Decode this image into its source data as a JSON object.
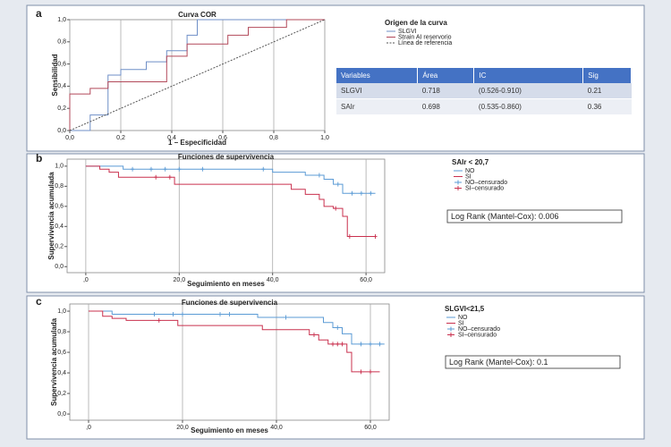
{
  "chart_data": [
    {
      "type": "line",
      "panel": "a",
      "title": "Curva COR",
      "x_label": "1 – Especificidad",
      "y_label": "Sensibilidad",
      "legend_title": "Origen de la curva",
      "xlim": [
        0,
        1
      ],
      "ylim": [
        0,
        1
      ],
      "xticks": [
        {
          "value": 0,
          "label": "0,0"
        },
        {
          "value": 0.2,
          "label": "0,2"
        },
        {
          "value": 0.4,
          "label": "0,4"
        },
        {
          "value": 0.6,
          "label": "0,6"
        },
        {
          "value": 0.8,
          "label": "0,8"
        },
        {
          "value": 1,
          "label": "1,0"
        }
      ],
      "yticks": [
        {
          "value": 0,
          "label": "0,0"
        },
        {
          "value": 0.2,
          "label": "0,2"
        },
        {
          "value": 0.4,
          "label": "0,4"
        },
        {
          "value": 0.6,
          "label": "0,6"
        },
        {
          "value": 0.8,
          "label": "0,8"
        },
        {
          "value": 1,
          "label": "1,0"
        }
      ],
      "grid": "x",
      "series": [
        {
          "name": "SLGVI",
          "color": "#6f8fc7",
          "x": [
            0,
            0.08,
            0.08,
            0.15,
            0.15,
            0.2,
            0.2,
            0.3,
            0.3,
            0.38,
            0.38,
            0.46,
            0.46,
            0.5,
            0.5,
            1
          ],
          "values": [
            0,
            0,
            0.14,
            0.14,
            0.5,
            0.5,
            0.55,
            0.55,
            0.62,
            0.62,
            0.72,
            0.72,
            0.86,
            0.86,
            1,
            1
          ]
        },
        {
          "name": "Strain AI reservorio",
          "color": "#b2495a",
          "x": [
            0,
            0,
            0.08,
            0.08,
            0.15,
            0.15,
            0.38,
            0.38,
            0.46,
            0.46,
            0.62,
            0.62,
            0.7,
            0.7,
            0.85,
            0.85,
            1
          ],
          "values": [
            0,
            0.33,
            0.33,
            0.38,
            0.38,
            0.44,
            0.44,
            0.67,
            0.67,
            0.78,
            0.78,
            0.86,
            0.86,
            0.93,
            0.93,
            1,
            1
          ]
        },
        {
          "name": "Línea de referencia",
          "color": "#555555",
          "dash": true,
          "x": [
            0,
            1
          ],
          "values": [
            0,
            1
          ]
        }
      ]
    },
    {
      "type": "step",
      "panel": "b",
      "title": "Funciones de supervivencia",
      "x_label": "Seguimiento en meses",
      "y_label": "Supervivencia acumulada",
      "legend_title": "SAIr < 20,7",
      "annotation": "Log Rank (Mantel-Cox): 0.006",
      "xlim": [
        -4,
        64
      ],
      "ylim": [
        -0.06,
        1.07
      ],
      "xticks": [
        {
          "value": 0,
          "label": ",0"
        },
        {
          "value": 20,
          "label": "20,0"
        },
        {
          "value": 40,
          "label": "40,0"
        },
        {
          "value": 60,
          "label": "60,0"
        }
      ],
      "yticks": [
        {
          "value": 0,
          "label": "0,0"
        },
        {
          "value": 0.2,
          "label": "0,2"
        },
        {
          "value": 0.4,
          "label": "0,4"
        },
        {
          "value": 0.6,
          "label": "0,6"
        },
        {
          "value": 0.8,
          "label": "0,8"
        },
        {
          "value": 1,
          "label": "1,0"
        }
      ],
      "grid": "x",
      "series": [
        {
          "name": "NO",
          "color": "#5b9bd5",
          "x": [
            0,
            8,
            40,
            47,
            51,
            53,
            55,
            62
          ],
          "values": [
            1,
            0.97,
            0.94,
            0.91,
            0.87,
            0.82,
            0.73,
            0.73
          ]
        },
        {
          "name": "SI",
          "color": "#c9304e",
          "x": [
            0,
            3,
            5,
            7,
            19,
            44,
            47,
            50,
            51,
            53,
            55,
            56,
            62
          ],
          "values": [
            1,
            0.97,
            0.94,
            0.89,
            0.82,
            0.77,
            0.72,
            0.67,
            0.6,
            0.58,
            0.5,
            0.3,
            0.3
          ]
        },
        {
          "name": "NO–censurado",
          "color": "#5b9bd5",
          "kind": "censored",
          "x": [
            10,
            14,
            17,
            20,
            25,
            38,
            50,
            54,
            57,
            59,
            61
          ],
          "values": [
            0.97,
            0.97,
            0.97,
            0.97,
            0.97,
            0.97,
            0.91,
            0.82,
            0.73,
            0.73,
            0.73
          ]
        },
        {
          "name": "SI–censurado",
          "color": "#c9304e",
          "kind": "censored",
          "x": [
            15,
            18,
            53.5,
            56.5,
            62
          ],
          "values": [
            0.89,
            0.89,
            0.58,
            0.3,
            0.3
          ]
        }
      ]
    },
    {
      "type": "step",
      "panel": "c",
      "title": "Funciones de supervivencia",
      "x_label": "Seguimiento en meses",
      "y_label": "Supervivencia acumulada",
      "legend_title": "SLGVI<21,5",
      "annotation": "Log Rank (Mantel-Cox): 0.1",
      "xlim": [
        -4,
        64
      ],
      "ylim": [
        -0.06,
        1.07
      ],
      "xticks": [
        {
          "value": 0,
          "label": ",0"
        },
        {
          "value": 20,
          "label": "20,0"
        },
        {
          "value": 40,
          "label": "40,0"
        },
        {
          "value": 60,
          "label": "60,0"
        }
      ],
      "yticks": [
        {
          "value": 0,
          "label": "0,0"
        },
        {
          "value": 0.2,
          "label": "0,2"
        },
        {
          "value": 0.4,
          "label": "0,4"
        },
        {
          "value": 0.6,
          "label": "0,6"
        },
        {
          "value": 0.8,
          "label": "0,8"
        },
        {
          "value": 1,
          "label": "1,0"
        }
      ],
      "grid": "x",
      "series": [
        {
          "name": "NO",
          "color": "#5b9bd5",
          "x": [
            0,
            5,
            36,
            50,
            52,
            54,
            56,
            63
          ],
          "values": [
            1,
            0.97,
            0.94,
            0.89,
            0.84,
            0.78,
            0.68,
            0.68
          ]
        },
        {
          "name": "SI",
          "color": "#c9304e",
          "x": [
            0,
            3,
            5,
            8,
            19,
            37,
            47,
            49,
            51,
            55,
            56,
            62
          ],
          "values": [
            1,
            0.95,
            0.93,
            0.91,
            0.86,
            0.82,
            0.77,
            0.72,
            0.68,
            0.6,
            0.41,
            0.41
          ]
        },
        {
          "name": "NO–censurado",
          "color": "#5b9bd5",
          "kind": "censored",
          "x": [
            14,
            18,
            20,
            28,
            30,
            42,
            53,
            58,
            60,
            62
          ],
          "values": [
            0.97,
            0.97,
            0.97,
            0.97,
            0.97,
            0.94,
            0.84,
            0.68,
            0.68,
            0.68
          ]
        },
        {
          "name": "SI–censurado",
          "color": "#c9304e",
          "kind": "censored",
          "x": [
            15,
            48,
            52,
            53,
            54,
            58,
            60
          ],
          "values": [
            0.91,
            0.77,
            0.68,
            0.68,
            0.68,
            0.41,
            0.41
          ]
        }
      ]
    }
  ],
  "table": {
    "header": [
      "Variables",
      "Área",
      "IC",
      "Sig"
    ],
    "rows": [
      [
        "SLGVI",
        "0.718",
        "(0.526-0.910)",
        "0.21"
      ],
      [
        "SAIr",
        "0.698",
        "(0.535-0.860)",
        "0.36"
      ]
    ]
  }
}
